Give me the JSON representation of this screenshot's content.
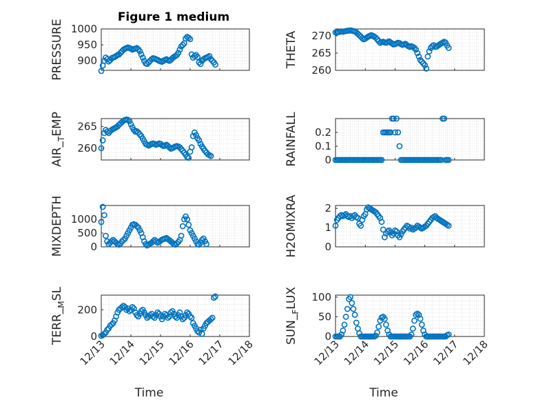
{
  "figure": {
    "title": "Figure 1 medium",
    "marker_color": "#0072BD"
  },
  "chart_data": [
    {
      "type": "scatter",
      "ylabel": "PRESSURE",
      "xlabel": "",
      "ylim": [
        870,
        1000
      ],
      "yticks": [
        900,
        950,
        1000
      ],
      "xlim": [
        13,
        18
      ],
      "xtick_labels": [],
      "grid": true,
      "x": [
        13.0,
        13.05,
        13.1,
        13.15,
        13.2,
        13.25,
        13.3,
        13.35,
        13.4,
        13.45,
        13.5,
        13.55,
        13.6,
        13.65,
        13.7,
        13.75,
        13.8,
        13.85,
        13.9,
        13.95,
        14.0,
        14.05,
        14.1,
        14.15,
        14.2,
        14.25,
        14.3,
        14.35,
        14.4,
        14.45,
        14.5,
        14.55,
        14.6,
        14.65,
        14.7,
        14.75,
        14.8,
        14.85,
        14.9,
        14.95,
        15.0,
        15.05,
        15.1,
        15.15,
        15.2,
        15.25,
        15.3,
        15.35,
        15.4,
        15.45,
        15.5,
        15.55,
        15.6,
        15.65,
        15.7,
        15.75,
        15.8,
        15.85,
        15.9,
        15.95,
        16.0,
        16.05,
        16.1,
        16.15,
        16.2,
        16.25,
        16.3,
        16.35,
        16.4,
        16.45,
        16.5,
        16.55,
        16.6,
        16.65,
        16.7,
        16.75,
        16.8,
        16.85
      ],
      "y": [
        868,
        885,
        900,
        910,
        905,
        898,
        902,
        908,
        910,
        912,
        915,
        918,
        920,
        925,
        930,
        935,
        938,
        940,
        942,
        940,
        938,
        935,
        937,
        938,
        940,
        936,
        930,
        920,
        910,
        900,
        892,
        890,
        895,
        900,
        905,
        908,
        907,
        905,
        903,
        900,
        898,
        897,
        900,
        903,
        905,
        902,
        900,
        903,
        908,
        912,
        915,
        918,
        925,
        935,
        945,
        950,
        955,
        970,
        975,
        972,
        968,
        920,
        910,
        915,
        918,
        912,
        895,
        890,
        900,
        905,
        908,
        910,
        912,
        915,
        905,
        900,
        895,
        888
      ]
    },
    {
      "type": "scatter",
      "ylabel": "THETA",
      "xlabel": "",
      "ylim": [
        260,
        272
      ],
      "yticks": [
        260,
        265,
        270
      ],
      "xlim": [
        13,
        18
      ],
      "xtick_labels": [],
      "grid": true,
      "x": [
        13.0,
        13.05,
        13.1,
        13.15,
        13.2,
        13.25,
        13.3,
        13.35,
        13.4,
        13.45,
        13.5,
        13.55,
        13.6,
        13.65,
        13.7,
        13.75,
        13.8,
        13.85,
        13.9,
        13.95,
        14.0,
        14.05,
        14.1,
        14.15,
        14.2,
        14.25,
        14.3,
        14.35,
        14.4,
        14.45,
        14.5,
        14.55,
        14.6,
        14.65,
        14.7,
        14.75,
        14.8,
        14.85,
        14.9,
        14.95,
        15.0,
        15.05,
        15.1,
        15.15,
        15.2,
        15.25,
        15.3,
        15.35,
        15.4,
        15.45,
        15.5,
        15.55,
        15.6,
        15.65,
        15.7,
        15.75,
        15.8,
        15.85,
        15.9,
        15.95,
        16.0,
        16.05,
        16.1,
        16.15,
        16.2,
        16.25,
        16.3,
        16.35,
        16.4,
        16.45,
        16.5,
        16.55,
        16.6,
        16.65,
        16.7,
        16.75,
        16.8
      ],
      "y": [
        271,
        271,
        271.1,
        271.2,
        271.3,
        271.2,
        271.3,
        271.4,
        271.5,
        271.5,
        271.6,
        271.5,
        271.4,
        271.3,
        271.0,
        270.6,
        270.2,
        269.8,
        269.3,
        269.0,
        269.2,
        269.5,
        269.8,
        270.0,
        270.2,
        270.0,
        269.8,
        269.5,
        269.0,
        268.5,
        268.0,
        268.2,
        268.3,
        268.1,
        268.0,
        268.2,
        268.4,
        268.1,
        267.8,
        267.5,
        267.6,
        267.8,
        268.0,
        267.9,
        267.6,
        267.4,
        267.5,
        267.7,
        267.3,
        267.0,
        266.8,
        267.0,
        266.8,
        266.5,
        266.0,
        265.0,
        264.0,
        263.0,
        262.5,
        262.0,
        261.5,
        260.5,
        264.0,
        265.5,
        266.5,
        267.0,
        267.3,
        266.8,
        266.9,
        267.2,
        267.5,
        267.8,
        268.0,
        268.3,
        268.0,
        267.2,
        266.5
      ]
    },
    {
      "type": "scatter",
      "ylabel": "AIR_TEMP",
      "xlabel": "",
      "ylim": [
        257.3,
        266.8
      ],
      "yticks": [
        260,
        265
      ],
      "xlim": [
        13,
        18
      ],
      "xtick_labels": [],
      "grid": true,
      "x": [
        13.0,
        13.05,
        13.1,
        13.15,
        13.2,
        13.25,
        13.3,
        13.35,
        13.4,
        13.45,
        13.5,
        13.55,
        13.6,
        13.65,
        13.7,
        13.75,
        13.8,
        13.85,
        13.9,
        13.95,
        14.0,
        14.05,
        14.1,
        14.15,
        14.2,
        14.25,
        14.3,
        14.35,
        14.4,
        14.45,
        14.5,
        14.55,
        14.6,
        14.65,
        14.7,
        14.75,
        14.8,
        14.85,
        14.9,
        14.95,
        15.0,
        15.05,
        15.1,
        15.15,
        15.2,
        15.25,
        15.3,
        15.35,
        15.4,
        15.45,
        15.5,
        15.55,
        15.6,
        15.65,
        15.7,
        15.75,
        15.8,
        15.85,
        15.9,
        15.95,
        16.0,
        16.05,
        16.1,
        16.15,
        16.2,
        16.25,
        16.3,
        16.35,
        16.4,
        16.45,
        16.5,
        16.55,
        16.6,
        16.65,
        16.7
      ],
      "y": [
        260.0,
        261.8,
        263.5,
        264.2,
        263.8,
        263.5,
        263.9,
        264.2,
        264.4,
        264.6,
        264.8,
        265.0,
        265.4,
        265.7,
        266.0,
        266.3,
        266.5,
        266.6,
        266.5,
        266.2,
        265.5,
        264.8,
        264.2,
        263.8,
        263.9,
        263.6,
        263.2,
        262.8,
        262.2,
        261.6,
        261.0,
        260.8,
        260.6,
        260.8,
        261.0,
        261.1,
        261.0,
        260.8,
        260.9,
        261.1,
        261.0,
        260.7,
        260.5,
        260.6,
        260.8,
        260.5,
        260.2,
        259.9,
        260.0,
        260.2,
        260.4,
        260.5,
        260.4,
        260.2,
        259.8,
        259.4,
        259.0,
        258.5,
        258.0,
        257.8,
        259.2,
        260.2,
        262.8,
        263.6,
        263.0,
        262.3,
        261.8,
        261.0,
        260.4,
        259.9,
        259.4,
        259.0,
        258.6,
        258.4,
        258.2
      ]
    },
    {
      "type": "scatter",
      "ylabel": "RAINFALL",
      "xlabel": "",
      "ylim": [
        0,
        0.3
      ],
      "yticks": [
        0,
        0.1,
        0.2
      ],
      "xlim": [
        13,
        18
      ],
      "xtick_labels": [],
      "grid": true,
      "x": [
        13.0,
        13.05,
        13.1,
        13.15,
        13.2,
        13.25,
        13.3,
        13.35,
        13.4,
        13.45,
        13.5,
        13.55,
        13.6,
        13.65,
        13.7,
        13.75,
        13.8,
        13.85,
        13.9,
        13.95,
        14.0,
        14.05,
        14.1,
        14.15,
        14.2,
        14.25,
        14.3,
        14.35,
        14.4,
        14.45,
        14.5,
        14.55,
        14.6,
        14.65,
        14.7,
        14.75,
        14.8,
        14.85,
        14.9,
        14.95,
        15.0,
        15.05,
        15.1,
        15.15,
        15.2,
        15.25,
        15.3,
        15.35,
        15.4,
        15.45,
        15.5,
        15.55,
        15.6,
        15.65,
        15.7,
        15.75,
        15.8,
        15.85,
        15.9,
        15.95,
        16.0,
        16.05,
        16.1,
        16.15,
        16.2,
        16.25,
        16.3,
        16.35,
        16.4,
        16.45,
        16.5,
        16.55,
        16.6,
        16.65,
        16.7,
        16.75,
        16.8
      ],
      "y": [
        0,
        0,
        0,
        0,
        0,
        0,
        0,
        0,
        0,
        0,
        0,
        0,
        0,
        0,
        0,
        0,
        0,
        0,
        0,
        0,
        0,
        0,
        0,
        0,
        0,
        0,
        0,
        0,
        0,
        0,
        0,
        0,
        0.2,
        0.2,
        0.2,
        0.2,
        0.2,
        0.2,
        0.3,
        0.3,
        0.2,
        0.3,
        0.2,
        0.1,
        0,
        0,
        0,
        0,
        0,
        0,
        0,
        0,
        0,
        0,
        0,
        0,
        0,
        0,
        0,
        0,
        0,
        0,
        0,
        0,
        0,
        0,
        0,
        0,
        0,
        0,
        0,
        0,
        0.3,
        0.3,
        0,
        0,
        0
      ]
    },
    {
      "type": "scatter",
      "ylabel": "MIXDEPTH",
      "xlabel": "",
      "ylim": [
        0,
        1500
      ],
      "yticks": [
        0,
        500,
        1000
      ],
      "xlim": [
        13,
        18
      ],
      "xtick_labels": [],
      "grid": true,
      "x": [
        13.0,
        13.05,
        13.1,
        13.15,
        13.2,
        13.25,
        13.3,
        13.35,
        13.4,
        13.45,
        13.5,
        13.55,
        13.6,
        13.65,
        13.7,
        13.75,
        13.8,
        13.85,
        13.9,
        13.95,
        14.0,
        14.05,
        14.1,
        14.15,
        14.2,
        14.25,
        14.3,
        14.35,
        14.4,
        14.45,
        14.5,
        14.55,
        14.6,
        14.65,
        14.7,
        14.75,
        14.8,
        14.85,
        14.9,
        14.95,
        15.0,
        15.05,
        15.1,
        15.15,
        15.2,
        15.25,
        15.3,
        15.35,
        15.4,
        15.45,
        15.5,
        15.55,
        15.6,
        15.65,
        15.7,
        15.75,
        15.8,
        15.85,
        15.9,
        15.95,
        16.0,
        16.05,
        16.1,
        16.15,
        16.2,
        16.25,
        16.3,
        16.35,
        16.4,
        16.45,
        16.5,
        16.55
      ],
      "y": [
        900,
        1450,
        1150,
        400,
        200,
        100,
        150,
        200,
        250,
        200,
        150,
        100,
        80,
        120,
        200,
        250,
        300,
        400,
        500,
        600,
        700,
        800,
        820,
        800,
        750,
        700,
        600,
        500,
        350,
        200,
        100,
        50,
        80,
        120,
        150,
        200,
        250,
        200,
        150,
        180,
        220,
        260,
        280,
        300,
        320,
        280,
        240,
        200,
        150,
        100,
        80,
        120,
        180,
        250,
        400,
        750,
        1000,
        1100,
        1000,
        800,
        600,
        500,
        400,
        300,
        200,
        100,
        80,
        150,
        250,
        300,
        200,
        100
      ]
    },
    {
      "type": "scatter",
      "ylabel": "H2OMIXRA",
      "xlabel": "",
      "ylim": [
        0,
        2.15
      ],
      "yticks": [
        0,
        1,
        2
      ],
      "xlim": [
        13,
        18
      ],
      "xtick_labels": [],
      "grid": true,
      "x": [
        13.0,
        13.05,
        13.1,
        13.15,
        13.2,
        13.25,
        13.3,
        13.35,
        13.4,
        13.45,
        13.5,
        13.55,
        13.6,
        13.65,
        13.7,
        13.75,
        13.8,
        13.85,
        13.9,
        13.95,
        14.0,
        14.05,
        14.1,
        14.15,
        14.2,
        14.25,
        14.3,
        14.35,
        14.4,
        14.45,
        14.5,
        14.55,
        14.6,
        14.65,
        14.7,
        14.75,
        14.8,
        14.85,
        14.9,
        14.95,
        15.0,
        15.05,
        15.1,
        15.15,
        15.2,
        15.25,
        15.3,
        15.35,
        15.4,
        15.45,
        15.5,
        15.55,
        15.6,
        15.65,
        15.7,
        15.75,
        15.8,
        15.85,
        15.9,
        15.95,
        16.0,
        16.05,
        16.1,
        16.15,
        16.2,
        16.25,
        16.3,
        16.35,
        16.4,
        16.45,
        16.5,
        16.55,
        16.6,
        16.65,
        16.7,
        16.75,
        16.8
      ],
      "y": [
        1.1,
        1.4,
        1.5,
        1.6,
        1.65,
        1.6,
        1.65,
        1.7,
        1.6,
        1.55,
        1.6,
        1.5,
        1.6,
        1.65,
        1.55,
        1.5,
        1.2,
        1.1,
        1.4,
        1.6,
        1.7,
        1.95,
        2.05,
        2.0,
        1.95,
        1.9,
        1.85,
        1.8,
        1.7,
        1.6,
        1.5,
        1.3,
        0.9,
        0.5,
        0.7,
        0.8,
        0.85,
        0.75,
        0.6,
        0.7,
        0.85,
        0.8,
        0.6,
        0.5,
        0.65,
        0.8,
        0.9,
        1.0,
        1.1,
        1.05,
        0.95,
        1.0,
        0.9,
        0.95,
        1.0,
        1.1,
        1.05,
        1.0,
        0.95,
        1.0,
        1.05,
        1.1,
        1.2,
        1.3,
        1.4,
        1.5,
        1.55,
        1.6,
        1.5,
        1.45,
        1.4,
        1.35,
        1.3,
        1.25,
        1.2,
        1.15,
        1.1
      ]
    },
    {
      "type": "scatter",
      "ylabel": "TERR_MSL",
      "xlabel": "Time",
      "ylim": [
        0,
        310
      ],
      "yticks": [
        0,
        200
      ],
      "xlim": [
        13,
        18
      ],
      "xtick_labels": [
        "12/13",
        "12/14",
        "12/15",
        "12/16",
        "12/17",
        "12/18"
      ],
      "grid": true,
      "x": [
        13.0,
        13.05,
        13.1,
        13.15,
        13.2,
        13.25,
        13.3,
        13.35,
        13.4,
        13.45,
        13.5,
        13.55,
        13.6,
        13.65,
        13.7,
        13.75,
        13.8,
        13.85,
        13.9,
        13.95,
        14.0,
        14.05,
        14.1,
        14.15,
        14.2,
        14.25,
        14.3,
        14.35,
        14.4,
        14.45,
        14.5,
        14.55,
        14.6,
        14.65,
        14.7,
        14.75,
        14.8,
        14.85,
        14.9,
        14.95,
        15.0,
        15.05,
        15.1,
        15.15,
        15.2,
        15.25,
        15.3,
        15.35,
        15.4,
        15.45,
        15.5,
        15.55,
        15.6,
        15.65,
        15.7,
        15.75,
        15.8,
        15.85,
        15.9,
        15.95,
        16.0,
        16.05,
        16.1,
        16.15,
        16.2,
        16.25,
        16.3,
        16.35,
        16.4,
        16.45,
        16.5,
        16.55,
        16.6,
        16.65,
        16.7,
        16.75,
        16.8,
        16.85
      ],
      "y": [
        5,
        10,
        20,
        30,
        50,
        60,
        80,
        90,
        100,
        120,
        150,
        180,
        200,
        210,
        220,
        230,
        220,
        200,
        210,
        190,
        200,
        220,
        210,
        180,
        160,
        150,
        170,
        190,
        200,
        180,
        160,
        140,
        150,
        160,
        170,
        150,
        140,
        160,
        180,
        170,
        150,
        130,
        150,
        170,
        160,
        140,
        150,
        180,
        190,
        170,
        150,
        140,
        160,
        180,
        150,
        130,
        140,
        160,
        180,
        170,
        150,
        140,
        100,
        80,
        60,
        40,
        30,
        50,
        20,
        60,
        80,
        100,
        110,
        120,
        130,
        140,
        290,
        300
      ]
    },
    {
      "type": "scatter",
      "ylabel": "SUN_FLUX",
      "xlabel": "Time",
      "ylim": [
        0,
        105
      ],
      "yticks": [
        0,
        50,
        100
      ],
      "xlim": [
        13,
        18
      ],
      "xtick_labels": [
        "12/13",
        "12/14",
        "12/15",
        "12/16",
        "12/17",
        "12/18"
      ],
      "grid": true,
      "x": [
        13.0,
        13.05,
        13.1,
        13.15,
        13.2,
        13.25,
        13.3,
        13.35,
        13.4,
        13.45,
        13.5,
        13.55,
        13.6,
        13.65,
        13.7,
        13.75,
        13.8,
        13.85,
        13.9,
        13.95,
        14.0,
        14.05,
        14.1,
        14.15,
        14.2,
        14.25,
        14.3,
        14.35,
        14.4,
        14.45,
        14.5,
        14.55,
        14.6,
        14.65,
        14.7,
        14.75,
        14.8,
        14.85,
        14.9,
        14.95,
        15.0,
        15.05,
        15.1,
        15.15,
        15.2,
        15.25,
        15.3,
        15.35,
        15.4,
        15.45,
        15.5,
        15.55,
        15.6,
        15.65,
        15.7,
        15.75,
        15.8,
        15.85,
        15.9,
        15.95,
        16.0,
        16.05,
        16.1,
        16.15,
        16.2,
        16.25,
        16.3,
        16.35,
        16.4,
        16.45,
        16.5,
        16.55,
        16.6,
        16.65,
        16.7,
        16.75,
        16.8
      ],
      "y": [
        0,
        0,
        0,
        0,
        5,
        15,
        30,
        50,
        70,
        95,
        100,
        85,
        70,
        55,
        35,
        20,
        8,
        0,
        0,
        0,
        0,
        0,
        0,
        0,
        0,
        0,
        0,
        2,
        10,
        25,
        40,
        48,
        50,
        45,
        30,
        15,
        5,
        0,
        0,
        0,
        0,
        0,
        0,
        0,
        0,
        0,
        0,
        0,
        0,
        0,
        0,
        5,
        20,
        40,
        55,
        58,
        55,
        45,
        30,
        15,
        5,
        0,
        0,
        0,
        0,
        0,
        0,
        0,
        0,
        0,
        0,
        0,
        0,
        0,
        0,
        3,
        5
      ]
    }
  ]
}
